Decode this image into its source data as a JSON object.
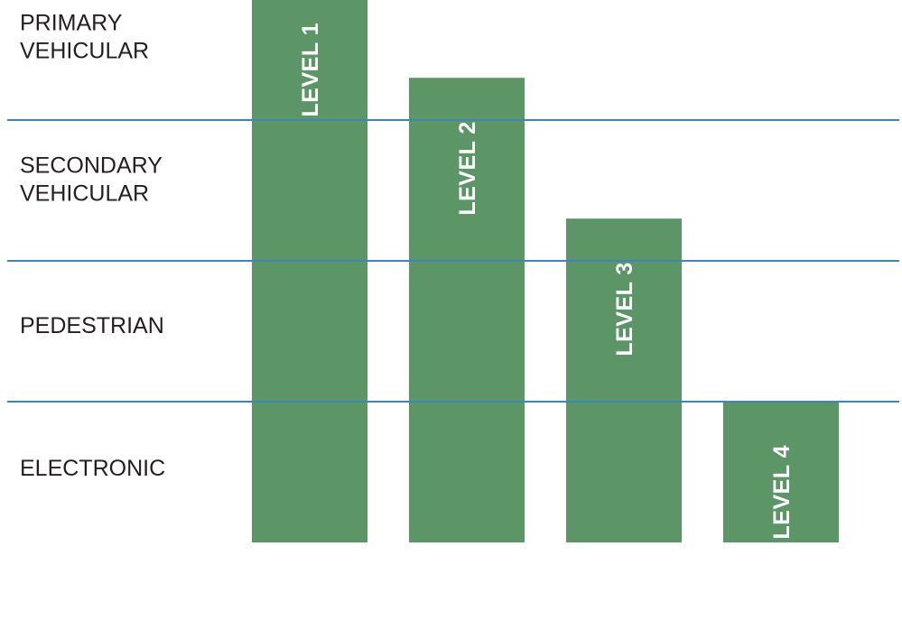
{
  "chart_data": {
    "type": "bar",
    "categories": [
      "LEVEL 1",
      "LEVEL 2",
      "LEVEL 3",
      "LEVEL 4"
    ],
    "values": [
      4,
      3.3,
      2.3,
      1
    ],
    "y_bands": [
      {
        "lines": [
          "PRIMARY",
          "VEHICULAR"
        ]
      },
      {
        "lines": [
          "SECONDARY",
          "VEHICULAR"
        ]
      },
      {
        "lines": [
          "PEDESTRIAN"
        ]
      },
      {
        "lines": [
          "ELECTRONIC"
        ]
      }
    ],
    "ylim": [
      0,
      4
    ],
    "grid": true,
    "bar_color": "#5c9566",
    "grid_color": "#3b88b5",
    "label_color": "#231f20",
    "bar_label_color": "#ffffff"
  }
}
